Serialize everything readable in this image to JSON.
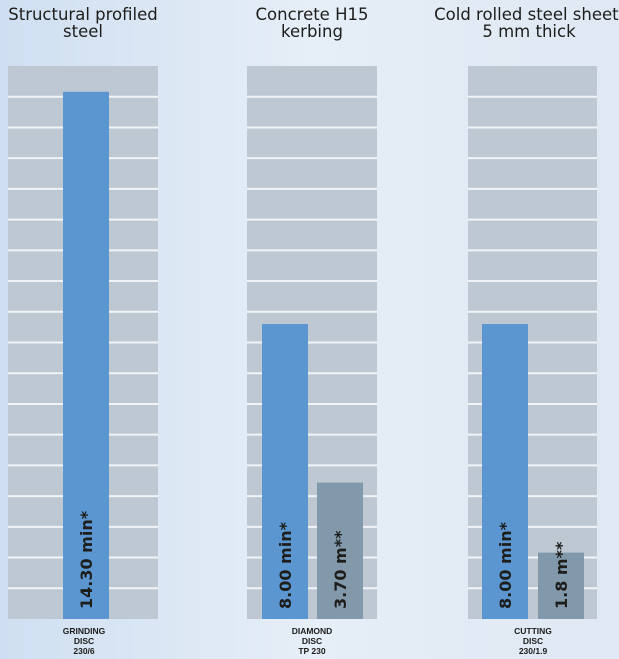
{
  "chart_data": {
    "type": "bar",
    "ylim": [
      0,
      15.0
    ],
    "grid": true,
    "groups": [
      {
        "title": [
          "Structural profiled",
          "steel"
        ],
        "caption": [
          "GRINDING",
          "DISC",
          "230/6"
        ],
        "bars": [
          {
            "value": 14.3,
            "label": "14.30 min*",
            "color": "#5b96d0"
          }
        ]
      },
      {
        "title": [
          "Concrete H15",
          "kerbing"
        ],
        "caption": [
          "DIAMOND",
          "DISC",
          "TP 230"
        ],
        "bars": [
          {
            "value": 8.0,
            "label": "8.00 min*",
            "color": "#5b96d0"
          },
          {
            "value": 3.7,
            "label": "3.70 m**",
            "color": "#8199ab"
          }
        ]
      },
      {
        "title": [
          "Cold rolled steel sheet,",
          "5 mm thick"
        ],
        "caption": [
          "CUTTING",
          "DISC",
          "230/1.9"
        ],
        "bars": [
          {
            "value": 8.0,
            "label": "8.00 min*",
            "color": "#5b96d0"
          },
          {
            "value": 1.8,
            "label": "1.8 m**",
            "color": "#8199ab"
          }
        ]
      }
    ]
  }
}
